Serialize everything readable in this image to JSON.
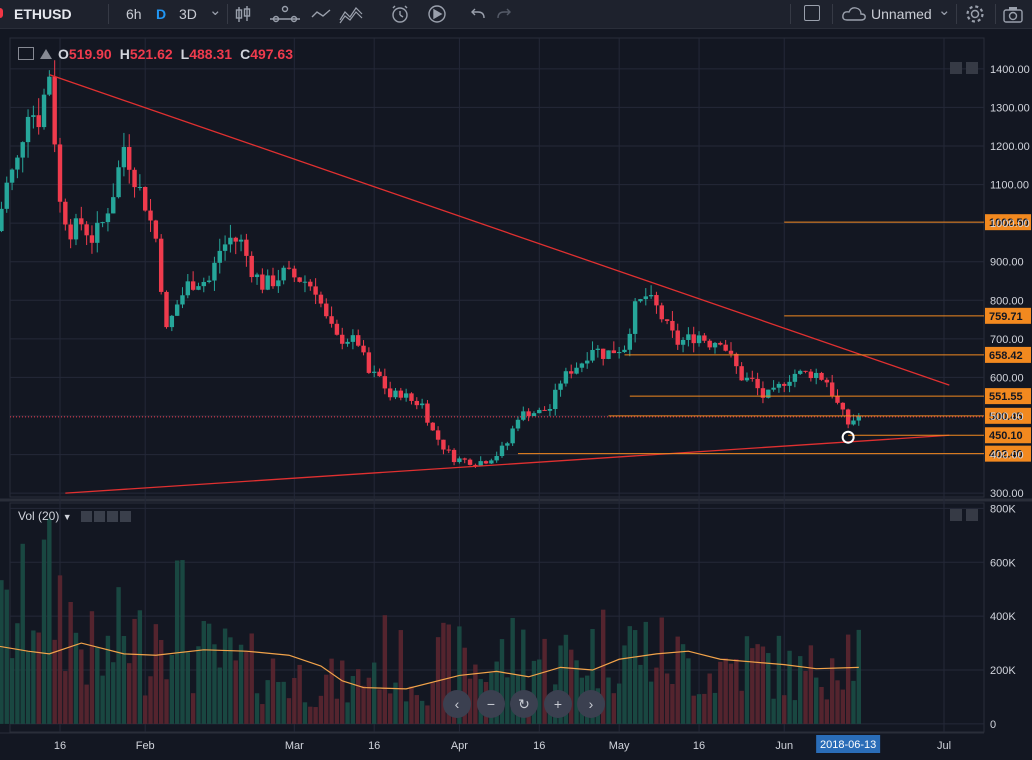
{
  "toolbar": {
    "symbol": "ETHUSD",
    "intervals": [
      "6h",
      "D",
      "3D"
    ],
    "active_interval": "D",
    "chevron": "⌄",
    "layout_name": "Unnamed",
    "icons": [
      "candles-icon",
      "compare-icon",
      "indicators-icon",
      "alert-icon",
      "replay-icon",
      "undo-icon",
      "redo-icon",
      "fullscreen-icon",
      "cloud-icon",
      "settings-icon"
    ]
  },
  "legend": {
    "o_label": "O",
    "o_value": "519.90",
    "h_label": "H",
    "h_value": "521.62",
    "l_label": "L",
    "l_value": "488.31",
    "c_label": "C",
    "c_value": "497.63"
  },
  "volume_label": "Vol (20)",
  "nav_buttons": [
    "‹",
    "−",
    "↻",
    "+",
    "›"
  ],
  "colors": {
    "up": "#26a69a",
    "down": "#ef3b4d",
    "trendline": "#e03030",
    "level": "#f2891f",
    "volume_ma": "#f2a34a",
    "background": "#131722"
  },
  "chart_data": [
    {
      "type": "candlestick",
      "title": "",
      "x_tick_labels": [
        "16",
        "Feb",
        "Mar",
        "16",
        "Apr",
        "16",
        "May",
        "16",
        "Jun",
        "Jul"
      ],
      "x_tick_dates": [
        "2018-01-16",
        "2018-02-01",
        "2018-03-01",
        "2018-03-16",
        "2018-04-01",
        "2018-04-16",
        "2018-05-01",
        "2018-05-16",
        "2018-06-01",
        "2018-07-01"
      ],
      "highlighted_date": "2018-06-13",
      "y_ticks": [
        300,
        400,
        500,
        600,
        700,
        800,
        900,
        1000,
        1100,
        1200,
        1300,
        1400
      ],
      "y_tick_labels": [
        "300.00",
        "400.00",
        "500.00",
        "600.00",
        "700.00",
        "800.00",
        "900.00",
        "1000.00",
        "1100.00",
        "1200.00",
        "1300.00",
        "1400.00"
      ],
      "ylim": [
        290,
        1480
      ],
      "close_path": [
        [
          "2018-01-04",
          980
        ],
        [
          "2018-01-06",
          1100
        ],
        [
          "2018-01-08",
          1160
        ],
        [
          "2018-01-10",
          1300
        ],
        [
          "2018-01-12",
          1270
        ],
        [
          "2018-01-14",
          1390
        ],
        [
          "2018-01-16",
          1050
        ],
        [
          "2018-01-18",
          980
        ],
        [
          "2018-01-20",
          1000
        ],
        [
          "2018-01-22",
          960
        ],
        [
          "2018-01-24",
          1000
        ],
        [
          "2018-01-26",
          1080
        ],
        [
          "2018-01-28",
          1200
        ],
        [
          "2018-01-30",
          1120
        ],
        [
          "2018-02-01",
          1050
        ],
        [
          "2018-02-03",
          960
        ],
        [
          "2018-02-05",
          720
        ],
        [
          "2018-02-07",
          790
        ],
        [
          "2018-02-09",
          840
        ],
        [
          "2018-02-11",
          850
        ],
        [
          "2018-02-13",
          850
        ],
        [
          "2018-02-15",
          930
        ],
        [
          "2018-02-17",
          960
        ],
        [
          "2018-02-19",
          950
        ],
        [
          "2018-02-21",
          880
        ],
        [
          "2018-02-23",
          840
        ],
        [
          "2018-02-25",
          850
        ],
        [
          "2018-02-27",
          870
        ],
        [
          "2018-03-01",
          860
        ],
        [
          "2018-03-03",
          850
        ],
        [
          "2018-03-05",
          830
        ],
        [
          "2018-03-07",
          750
        ],
        [
          "2018-03-09",
          700
        ],
        [
          "2018-03-11",
          700
        ],
        [
          "2018-03-13",
          690
        ],
        [
          "2018-03-15",
          610
        ],
        [
          "2018-03-17",
          600
        ],
        [
          "2018-03-19",
          550
        ],
        [
          "2018-03-21",
          560
        ],
        [
          "2018-03-23",
          540
        ],
        [
          "2018-03-25",
          530
        ],
        [
          "2018-03-27",
          460
        ],
        [
          "2018-03-29",
          420
        ],
        [
          "2018-03-31",
          390
        ],
        [
          "2018-04-02",
          385
        ],
        [
          "2018-04-04",
          380
        ],
        [
          "2018-04-06",
          385
        ],
        [
          "2018-04-08",
          400
        ],
        [
          "2018-04-10",
          430
        ],
        [
          "2018-04-12",
          500
        ],
        [
          "2018-04-14",
          510
        ],
        [
          "2018-04-16",
          510
        ],
        [
          "2018-04-18",
          520
        ],
        [
          "2018-04-20",
          590
        ],
        [
          "2018-04-22",
          620
        ],
        [
          "2018-04-24",
          640
        ],
        [
          "2018-04-26",
          680
        ],
        [
          "2018-04-28",
          660
        ],
        [
          "2018-04-30",
          670
        ],
        [
          "2018-05-02",
          680
        ],
        [
          "2018-05-04",
          780
        ],
        [
          "2018-05-06",
          810
        ],
        [
          "2018-05-08",
          780
        ],
        [
          "2018-05-10",
          730
        ],
        [
          "2018-05-12",
          690
        ],
        [
          "2018-05-14",
          700
        ],
        [
          "2018-05-16",
          710
        ],
        [
          "2018-05-18",
          690
        ],
        [
          "2018-05-20",
          700
        ],
        [
          "2018-05-22",
          650
        ],
        [
          "2018-05-24",
          600
        ],
        [
          "2018-05-26",
          590
        ],
        [
          "2018-05-28",
          550
        ],
        [
          "2018-05-30",
          560
        ],
        [
          "2018-06-01",
          590
        ],
        [
          "2018-06-03",
          610
        ],
        [
          "2018-06-05",
          610
        ],
        [
          "2018-06-07",
          610
        ],
        [
          "2018-06-09",
          590
        ],
        [
          "2018-06-11",
          530
        ],
        [
          "2018-06-13",
          480
        ],
        [
          "2018-06-15",
          500
        ]
      ],
      "annotation_lines": [
        {
          "kind": "trendline",
          "from": [
            "2018-01-14",
            1385
          ],
          "to": [
            "2018-07-02",
            580
          ]
        },
        {
          "kind": "trendline",
          "from": [
            "2018-01-17",
            300
          ],
          "to": [
            "2018-07-02",
            450
          ]
        }
      ],
      "level_lines": [
        {
          "value": 1002.5,
          "label": "1002.50",
          "from": "2018-06-01"
        },
        {
          "value": 759.71,
          "label": "759.71",
          "from": "2018-06-01"
        },
        {
          "value": 658.42,
          "label": "658.42",
          "from": "2018-05-02"
        },
        {
          "value": 551.55,
          "label": "551.55",
          "from": "2018-05-03"
        },
        {
          "value": 500.45,
          "label": "500.45",
          "from": "2018-04-29"
        },
        {
          "value": 450.1,
          "label": "450.10",
          "from": "2018-06-13"
        },
        {
          "value": 402.4,
          "label": "402.40",
          "from": "2018-04-12"
        }
      ],
      "current_price": 497.63,
      "marker": [
        "2018-06-13",
        445
      ]
    },
    {
      "type": "bar",
      "title": "Vol (20)",
      "y_ticks": [
        0,
        200000,
        400000,
        600000,
        800000
      ],
      "y_tick_labels": [
        "0",
        "200K",
        "400K",
        "600K",
        "800K"
      ],
      "ylim": [
        -30000,
        820000
      ],
      "note": "daily volume bars with 20-period moving average line",
      "ma_path": [
        [
          "2018-01-04",
          290000
        ],
        [
          "2018-01-10",
          270000
        ],
        [
          "2018-01-14",
          260000
        ],
        [
          "2018-01-20",
          300000
        ],
        [
          "2018-01-28",
          260000
        ],
        [
          "2018-02-03",
          255000
        ],
        [
          "2018-02-12",
          275000
        ],
        [
          "2018-02-20",
          270000
        ],
        [
          "2018-02-28",
          255000
        ],
        [
          "2018-03-06",
          215000
        ],
        [
          "2018-03-10",
          160000
        ],
        [
          "2018-03-14",
          135000
        ],
        [
          "2018-03-22",
          130000
        ],
        [
          "2018-04-01",
          180000
        ],
        [
          "2018-04-08",
          195000
        ],
        [
          "2018-04-14",
          175000
        ],
        [
          "2018-04-20",
          210000
        ],
        [
          "2018-04-26",
          200000
        ],
        [
          "2018-05-01",
          240000
        ],
        [
          "2018-05-08",
          260000
        ],
        [
          "2018-05-14",
          270000
        ],
        [
          "2018-05-20",
          240000
        ],
        [
          "2018-05-26",
          230000
        ],
        [
          "2018-06-01",
          220000
        ],
        [
          "2018-06-07",
          205000
        ],
        [
          "2018-06-15",
          210000
        ]
      ],
      "volume_path": [
        [
          "2018-01-04",
          350000
        ],
        [
          "2018-01-08",
          380000
        ],
        [
          "2018-01-12",
          520000
        ],
        [
          "2018-01-16",
          460000
        ],
        [
          "2018-01-20",
          300000
        ],
        [
          "2018-01-24",
          220000
        ],
        [
          "2018-01-28",
          340000
        ],
        [
          "2018-02-01",
          280000
        ],
        [
          "2018-02-06",
          520000
        ],
        [
          "2018-02-10",
          260000
        ],
        [
          "2018-02-16",
          230000
        ],
        [
          "2018-02-22",
          200000
        ],
        [
          "2018-02-28",
          170000
        ],
        [
          "2018-03-06",
          160000
        ],
        [
          "2018-03-12",
          140000
        ],
        [
          "2018-03-18",
          260000
        ],
        [
          "2018-03-24",
          170000
        ],
        [
          "2018-03-30",
          240000
        ],
        [
          "2018-04-06",
          200000
        ],
        [
          "2018-04-12",
          280000
        ],
        [
          "2018-04-18",
          220000
        ],
        [
          "2018-04-24",
          260000
        ],
        [
          "2018-04-30",
          300000
        ],
        [
          "2018-05-06",
          280000
        ],
        [
          "2018-05-12",
          230000
        ],
        [
          "2018-05-18",
          190000
        ],
        [
          "2018-05-24",
          240000
        ],
        [
          "2018-05-30",
          220000
        ],
        [
          "2018-06-05",
          170000
        ],
        [
          "2018-06-11",
          300000
        ],
        [
          "2018-06-15",
          260000
        ]
      ]
    }
  ]
}
